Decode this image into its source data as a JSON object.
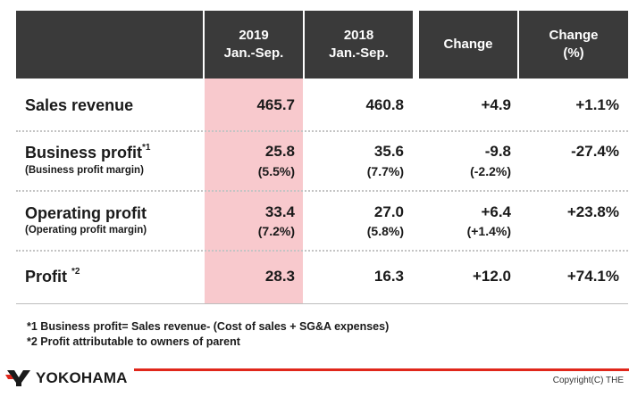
{
  "table": {
    "headers": [
      {
        "line1": "2019",
        "line2": "Jan.-Sep."
      },
      {
        "line1": "2018",
        "line2": "Jan.-Sep."
      },
      {
        "line1": "Change",
        "line2": ""
      },
      {
        "line1": "Change",
        "line2": "(%)"
      }
    ],
    "rows": [
      {
        "label": "Sales revenue",
        "sup": "",
        "sublabel": "",
        "v2019": "465.7",
        "v2018": "460.8",
        "change": "+4.9",
        "change_pct": "+1.1%",
        "s2019": "",
        "s2018": "",
        "schange": ""
      },
      {
        "label": "Business profit",
        "sup": "*1",
        "sublabel": "(Business  profit margin)",
        "v2019": "25.8",
        "v2018": "35.6",
        "change": "-9.8",
        "change_pct": "-27.4%",
        "s2019": "(5.5%)",
        "s2018": "(7.7%)",
        "schange": "(-2.2%)"
      },
      {
        "label": "Operating profit",
        "sup": "",
        "sublabel": "(Operating profit margin)",
        "v2019": "33.4",
        "v2018": "27.0",
        "change": "+6.4",
        "change_pct": "+23.8%",
        "s2019": "(7.2%)",
        "s2018": "(5.8%)",
        "schange": "(+1.4%)"
      },
      {
        "label": "Profit ",
        "sup": "*2",
        "sublabel": "",
        "v2019": "28.3",
        "v2018": "16.3",
        "change": "+12.0",
        "change_pct": "+74.1%",
        "s2019": "",
        "s2018": "",
        "schange": ""
      }
    ]
  },
  "notes": [
    "*1 Business profit= Sales revenue- (Cost of sales + SG&A expenses)",
    "*2 Profit attributable to owners of parent"
  ],
  "footer": {
    "logo_text": "YOKOHAMA",
    "copyright": "Copyright(C) THE"
  },
  "colors": {
    "header_bg": "#3a3a3a",
    "highlight": "#f8c9cd",
    "accent_red": "#e0271b"
  }
}
